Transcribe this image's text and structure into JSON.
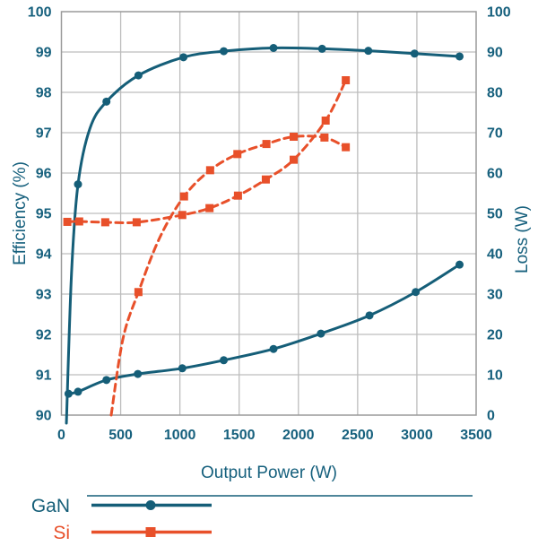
{
  "chart_data": {
    "type": "line",
    "title": "",
    "xlabel": "Output Power (W)",
    "ylabel_left": "Efficiency (%)",
    "ylabel_right": "Loss (W)",
    "x_range": [
      0,
      3500
    ],
    "left_range": [
      90,
      100
    ],
    "right_range": [
      0,
      100
    ],
    "x_ticks": [
      0,
      500,
      1000,
      1500,
      2000,
      2500,
      3000,
      3500
    ],
    "left_ticks": [
      90,
      91,
      92,
      93,
      94,
      95,
      96,
      97,
      98,
      99,
      100
    ],
    "right_ticks": [
      0,
      10,
      20,
      30,
      40,
      50,
      60,
      70,
      80,
      90,
      100
    ],
    "grid": true,
    "legend_position": "bottom-left",
    "colors": {
      "gan": "#155e78",
      "si": "#e8502a",
      "text": "#16607d",
      "grid": "#bdbdbd",
      "border": "#9a9a9a"
    },
    "series": [
      {
        "id": "gan-efficiency",
        "name": "GaN Efficiency",
        "group": "GaN",
        "axis": "left",
        "style": "solid",
        "marker": "circle",
        "points": [
          [
            42,
            89.8,
            0
          ],
          [
            85,
            93.5,
            0
          ],
          [
            140,
            95.72,
            1
          ],
          [
            240,
            97.1,
            0
          ],
          [
            380,
            97.77,
            1
          ],
          [
            650,
            98.42,
            1
          ],
          [
            1030,
            98.87,
            1
          ],
          [
            1370,
            99.02,
            1
          ],
          [
            1790,
            99.1,
            1
          ],
          [
            2200,
            99.08,
            1
          ],
          [
            2590,
            99.03,
            1
          ],
          [
            2980,
            98.96,
            1
          ],
          [
            3360,
            98.89,
            1
          ]
        ]
      },
      {
        "id": "gan-loss",
        "name": "GaN Loss",
        "group": "GaN",
        "axis": "right",
        "style": "solid",
        "marker": "circle",
        "points": [
          [
            60,
            5.3,
            1
          ],
          [
            140,
            5.8,
            1
          ],
          [
            380,
            8.7,
            1
          ],
          [
            645,
            10.2,
            1
          ],
          [
            1020,
            11.6,
            1
          ],
          [
            1370,
            13.6,
            1
          ],
          [
            1790,
            16.4,
            1
          ],
          [
            2190,
            20.2,
            1
          ],
          [
            2600,
            24.7,
            1
          ],
          [
            2990,
            30.5,
            1
          ],
          [
            3360,
            37.3,
            1
          ]
        ]
      },
      {
        "id": "si-efficiency",
        "name": "Si Efficiency",
        "group": "Si",
        "axis": "left",
        "style": "dashed",
        "marker": "square",
        "points": [
          [
            420,
            90.0,
            0
          ],
          [
            520,
            91.9,
            0
          ],
          [
            650,
            93.05,
            1
          ],
          [
            830,
            94.4,
            0
          ],
          [
            1035,
            95.42,
            1
          ],
          [
            1255,
            96.07,
            1
          ],
          [
            1485,
            96.47,
            1
          ],
          [
            1730,
            96.72,
            1
          ],
          [
            1960,
            96.9,
            1
          ],
          [
            2220,
            96.88,
            1
          ],
          [
            2400,
            96.64,
            1
          ]
        ]
      },
      {
        "id": "si-loss",
        "name": "Si Loss",
        "group": "Si",
        "axis": "right",
        "style": "dashed",
        "marker": "square",
        "points": [
          [
            50,
            47.9,
            1
          ],
          [
            150,
            48.0,
            1
          ],
          [
            370,
            47.8,
            1
          ],
          [
            635,
            47.8,
            1
          ],
          [
            1020,
            49.6,
            1
          ],
          [
            1250,
            51.3,
            1
          ],
          [
            1490,
            54.4,
            1
          ],
          [
            1725,
            58.4,
            1
          ],
          [
            1960,
            63.3,
            1
          ],
          [
            2230,
            73.0,
            1
          ],
          [
            2400,
            83.0,
            1
          ]
        ]
      }
    ],
    "legend": [
      {
        "label": "GaN",
        "color": "#155e78",
        "marker": "circle"
      },
      {
        "label": "Si",
        "color": "#e8502a",
        "marker": "square"
      }
    ]
  }
}
